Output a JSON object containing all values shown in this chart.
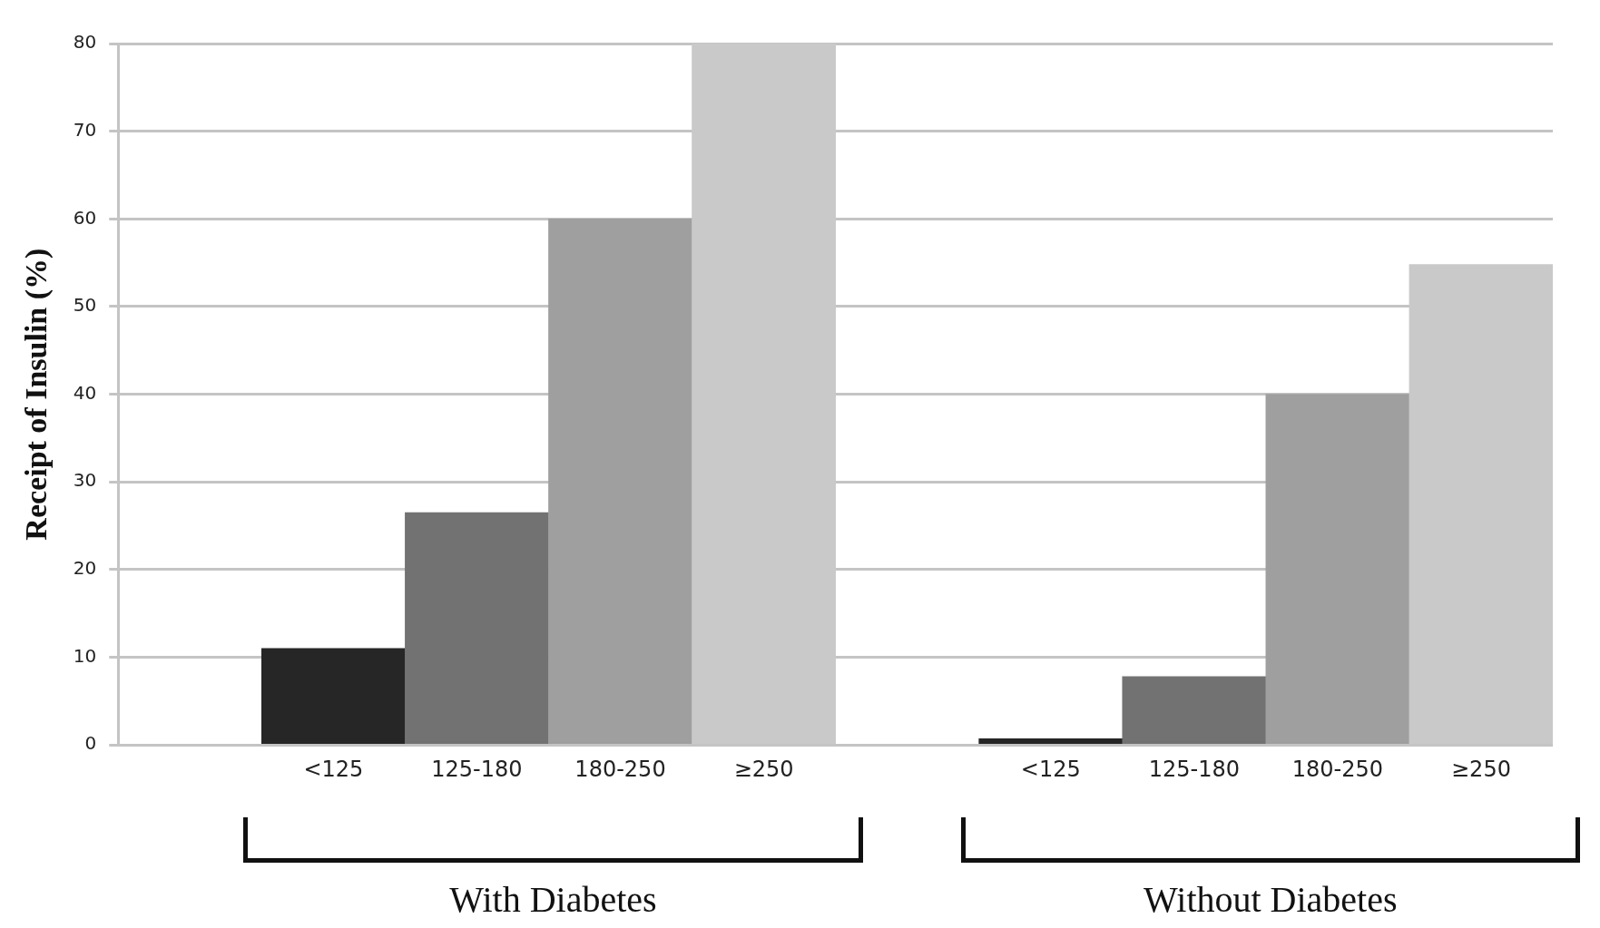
{
  "chart_data": {
    "type": "bar",
    "ylabel": "Receipt of Insulin (%)",
    "categories": [
      "<125",
      "125-180",
      "180-250",
      "≥250",
      "<125",
      "125-180",
      "180-250",
      "≥250"
    ],
    "values": [
      11,
      26.5,
      60,
      80,
      0.7,
      7.8,
      40,
      54.8
    ],
    "colors": [
      "#262626",
      "#727272",
      "#9f9f9f",
      "#c9c9c9",
      "#262626",
      "#727272",
      "#9f9f9f",
      "#c9c9c9"
    ],
    "ylim": [
      0,
      80
    ],
    "yticks": [
      0,
      10,
      20,
      30,
      40,
      50,
      60,
      70,
      80
    ],
    "grid": "y",
    "legend": false,
    "annotations": [
      "With Diabetes",
      "Without Diabetes"
    ]
  }
}
